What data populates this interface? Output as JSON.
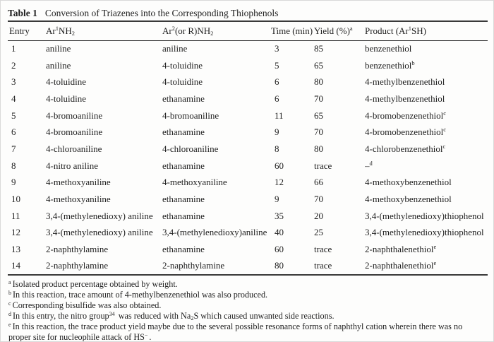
{
  "table": {
    "label": "Table 1",
    "caption": "Conversion of Triazenes into the Corresponding Thiophenols",
    "headers": {
      "entry": "Entry",
      "ar1_pre": "Ar",
      "ar1_sup": "1",
      "ar1_mid": "NH",
      "ar1_sub": "2",
      "ar2_pre": "Ar",
      "ar2_sup": "2",
      "ar2_mid": "(or R)NH",
      "ar2_sub": "2",
      "time": "Time (min)",
      "yield_pre": "Yield (%)",
      "yield_sup": "a",
      "product_pre": "Product (Ar",
      "product_sup": "1",
      "product_post": "SH)"
    },
    "rows": [
      {
        "entry": "1",
        "ar1": "aniline",
        "ar2": "aniline",
        "time": "3",
        "yield": "85",
        "product": "benzenethiol",
        "product_sup": ""
      },
      {
        "entry": "2",
        "ar1": "aniline",
        "ar2": "4-toluidine",
        "time": "5",
        "yield": "65",
        "product": "benzenethiol",
        "product_sup": "b"
      },
      {
        "entry": "3",
        "ar1": "4-toluidine",
        "ar2": "4-toluidine",
        "time": "6",
        "yield": "80",
        "product": "4-methylbenzenethiol",
        "product_sup": ""
      },
      {
        "entry": "4",
        "ar1": "4-toluidine",
        "ar2": "ethanamine",
        "time": "6",
        "yield": "70",
        "product": "4-methylbenzenethiol",
        "product_sup": ""
      },
      {
        "entry": "5",
        "ar1": "4-bromoaniline",
        "ar2": "4-bromoaniline",
        "time": "11",
        "yield": "65",
        "product": "4-bromobenzenethiol",
        "product_sup": "c"
      },
      {
        "entry": "6",
        "ar1": "4-bromoaniline",
        "ar2": "ethanamine",
        "time": "9",
        "yield": "70",
        "product": "4-bromobenzenethiol",
        "product_sup": "c"
      },
      {
        "entry": "7",
        "ar1": "4-chloroaniline",
        "ar2": "4-chloroaniline",
        "time": "8",
        "yield": "80",
        "product": "4-chlorobenzenethiol",
        "product_sup": "c"
      },
      {
        "entry": "8",
        "ar1": "4-nitro aniline",
        "ar2": "ethanamine",
        "time": "60",
        "yield": "trace",
        "product": "–",
        "product_sup": "d"
      },
      {
        "entry": "9",
        "ar1": "4-methoxyaniline",
        "ar2": "4-methoxyaniline",
        "time": "12",
        "yield": "66",
        "product": "4-methoxybenzenethiol",
        "product_sup": ""
      },
      {
        "entry": "10",
        "ar1": "4-methoxyaniline",
        "ar2": "ethanamine",
        "time": "9",
        "yield": "70",
        "product": "4-methoxybenzenethiol",
        "product_sup": ""
      },
      {
        "entry": "11",
        "ar1": "3,4-(methylenedioxy) aniline",
        "ar2": "ethanamine",
        "time": "35",
        "yield": "20",
        "product": "3,4-(methylenedioxy)thiophenol",
        "product_sup": ""
      },
      {
        "entry": "12",
        "ar1": "3,4-(methylenedioxy) aniline",
        "ar2": "3,4-(methylenedioxy)aniline",
        "time": "40",
        "yield": "25",
        "product": "3,4-(methylenedioxy)thiophenol",
        "product_sup": ""
      },
      {
        "entry": "13",
        "ar1": "2-naphthylamine",
        "ar2": "ethanamine",
        "time": "60",
        "yield": "trace",
        "product": "2-naphthalenethiol",
        "product_sup": "e"
      },
      {
        "entry": "14",
        "ar1": "2-naphthylamine",
        "ar2": "2-naphthylamine",
        "time": "80",
        "yield": "trace",
        "product": "2-naphthalenethiol",
        "product_sup": "e"
      }
    ],
    "footnotes": {
      "a": {
        "marker": "a",
        "text": "Isolated product percentage obtained by weight."
      },
      "b": {
        "marker": "b",
        "text": "In this reaction, trace amount of 4-methylbenzenethiol was also produced."
      },
      "c": {
        "marker": "c",
        "text": "Corresponding bisulfide was also obtained."
      },
      "d": {
        "marker": "d",
        "t1": "In this entry, the nitro group",
        "sup": "34",
        "t2": " was reduced with Na",
        "sub": "2",
        "t3": "S which caused unwanted side reactions."
      },
      "e": {
        "marker": "e",
        "t1": "In this reaction, the trace product yield maybe due to the several possible resonance forms of naphthyl cation wherein there was no proper site for nucleophile attack of HS",
        "sup": "−",
        "t2": "."
      }
    }
  }
}
